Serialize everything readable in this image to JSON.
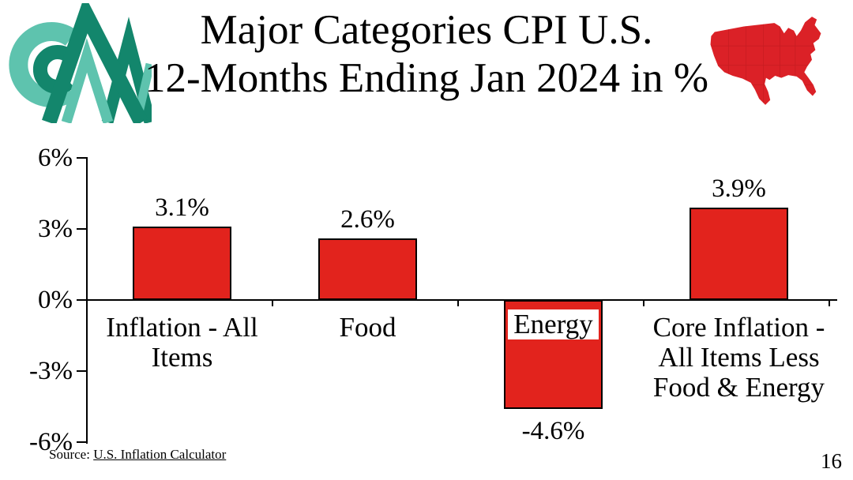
{
  "slide": {
    "title_lines": [
      "Major Categories CPI U.S.",
      "12-Months Ending Jan 2024 in %"
    ],
    "source_prefix": "Source:",
    "source_link": "U.S. Inflation Calculator",
    "page_number": "16"
  },
  "logo": {
    "teal": "#5EC3AE",
    "green": "#13866C"
  },
  "map": {
    "fill": "#DB2127",
    "state_line": "#9E1418"
  },
  "chart_data": {
    "type": "bar",
    "title": "Major Categories CPI U.S. 12-Months Ending Jan 2024 in %",
    "categories": [
      "Inflation - All\nItems",
      "Food",
      "Energy",
      "Core Inflation -\nAll Items Less\nFood & Energy"
    ],
    "values": [
      3.1,
      2.6,
      -4.6,
      3.9
    ],
    "value_labels": [
      "3.1%",
      "2.6%",
      "-4.6%",
      "3.9%"
    ],
    "xlabel": "",
    "ylabel": "",
    "ylim": [
      -6,
      6
    ],
    "yticks": [
      6,
      3,
      0,
      -3,
      -6
    ],
    "ytick_labels": [
      "6%",
      "3%",
      "0%",
      "-3%",
      "-6%"
    ],
    "bar_color": "#E2231D",
    "bar_border": "#000000",
    "grid": false,
    "legend": false,
    "energy_label_highlighted": true
  }
}
